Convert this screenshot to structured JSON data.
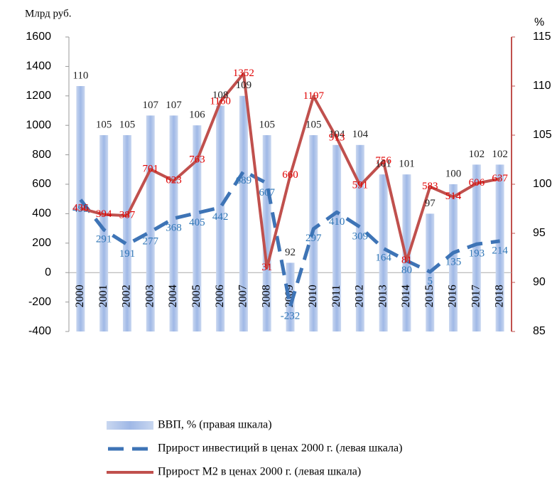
{
  "chart_data": {
    "type": "bar_line",
    "y_label": "Млрд руб.",
    "y2_label": "%",
    "categories": [
      "2000",
      "2001",
      "2002",
      "2003",
      "2004",
      "2005",
      "2006",
      "2007",
      "2008",
      "2009",
      "2010",
      "2011",
      "2012",
      "2013",
      "2014",
      "2015",
      "2016",
      "2017",
      "2018"
    ],
    "ylim": [
      -400,
      1600
    ],
    "yticks": [
      -400,
      -200,
      0,
      200,
      400,
      600,
      800,
      1000,
      1200,
      1400,
      1600
    ],
    "y2lim": [
      85,
      115
    ],
    "y2ticks": [
      85,
      90,
      95,
      100,
      105,
      110,
      115
    ],
    "series": [
      {
        "name": "ВВП, % (правая шкала)",
        "kind": "bar",
        "axis": "y2",
        "color": "#a9c0e8",
        "values": [
          110,
          105,
          105,
          107,
          107,
          106,
          108,
          109,
          105,
          92,
          105,
          104,
          104,
          101,
          101,
          97,
          100,
          102,
          102
        ]
      },
      {
        "name": "Прирост инвестиций в ценах 2000 г. (левая шкала)",
        "kind": "dashed",
        "axis": "y",
        "color": "#3e74b6",
        "values": [
          495,
          291,
          191,
          277,
          368,
          405,
          442,
          689,
          607,
          -232,
          297,
          410,
          309,
          164,
          80,
          5,
          135,
          193,
          214
        ]
      },
      {
        "name": "Прирост М2 в ценах 2000 г. (левая шкала)",
        "kind": "line",
        "axis": "y",
        "color": "#c0504d",
        "values": [
          436,
          394,
          387,
          701,
          623,
          763,
          1160,
          1352,
          31,
          660,
          1197,
          913,
          591,
          756,
          81,
          583,
          514,
          606,
          637
        ]
      }
    ]
  }
}
